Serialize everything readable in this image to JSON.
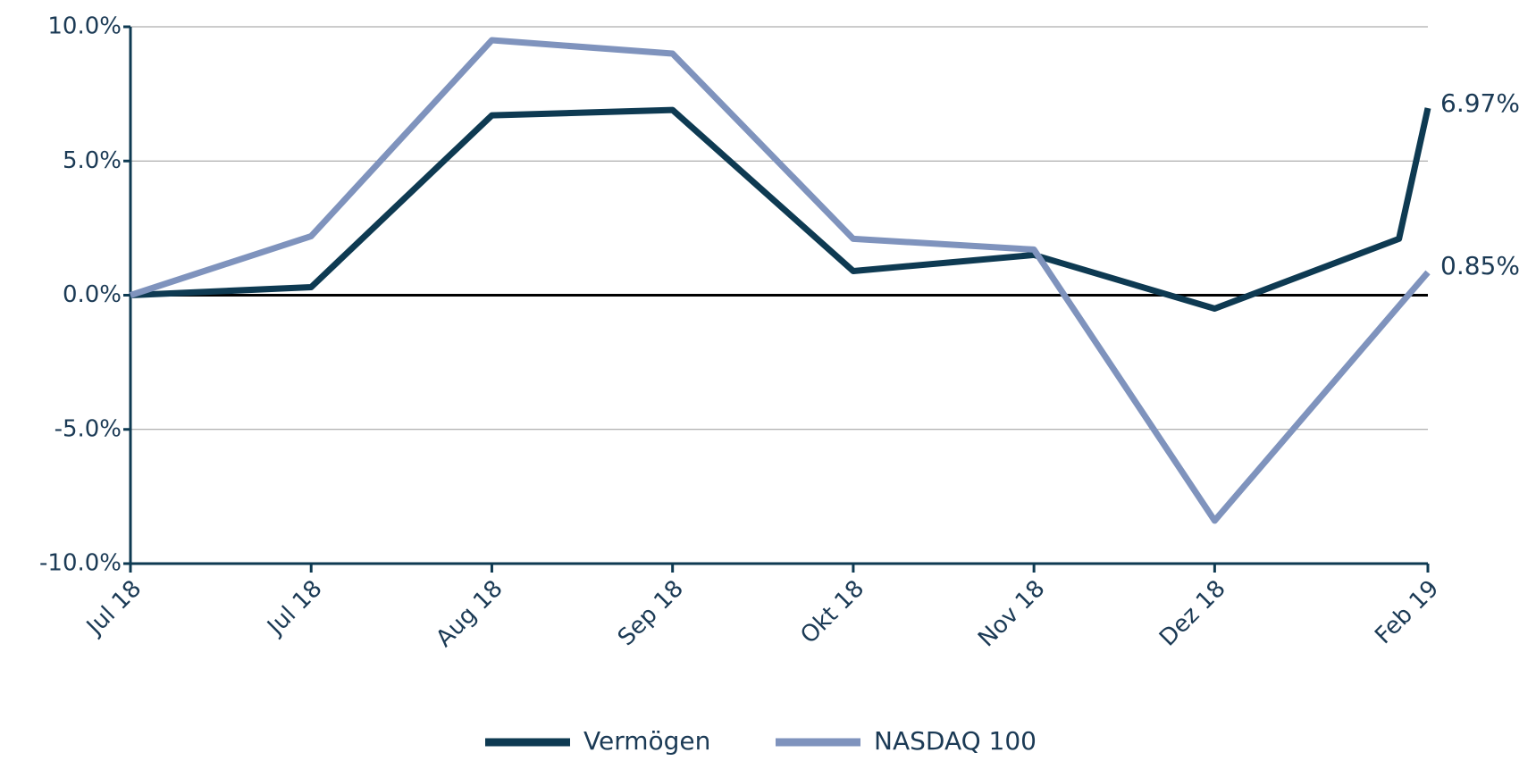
{
  "chart_data": {
    "type": "line",
    "categories": [
      "Jul 18",
      "Jul 18",
      "Aug 18",
      "Sep 18",
      "Okt 18",
      "Nov 18",
      "Dez 18",
      null,
      "Feb 19"
    ],
    "series": [
      {
        "name": "Vermögen",
        "color": "#0e3a52",
        "values": [
          0,
          0.3,
          6.7,
          6.9,
          0.9,
          1.5,
          -0.5,
          2.1,
          6.97
        ],
        "value_labels": [
          null,
          null,
          null,
          null,
          null,
          null,
          null,
          null,
          "6.97%"
        ]
      },
      {
        "name": "NASDAQ 100",
        "color": "#7f93bd",
        "values": [
          0,
          2.2,
          9.5,
          9.0,
          2.1,
          1.7,
          -8.4,
          -0.4,
          0.85
        ],
        "value_labels": [
          null,
          null,
          null,
          null,
          null,
          null,
          null,
          null,
          "0.85%"
        ]
      }
    ],
    "ylim": [
      -10,
      10
    ],
    "yticks": [
      {
        "value": -10,
        "label": "-10.0%"
      },
      {
        "value": -5,
        "label": "-5.0%"
      },
      {
        "value": 0,
        "label": "0.0%"
      },
      {
        "value": 5,
        "label": "5.0%"
      },
      {
        "value": 10,
        "label": "10.0%"
      }
    ],
    "grid": true,
    "legend": "bottom"
  }
}
